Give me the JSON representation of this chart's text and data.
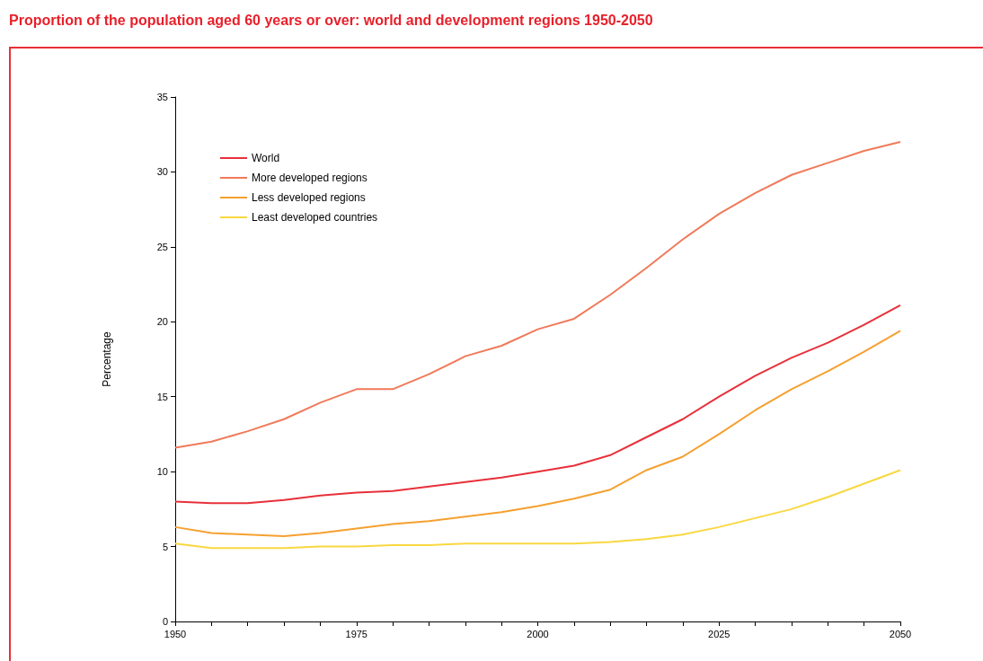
{
  "chart_data": {
    "type": "line",
    "title": "Proportion of the population aged 60 years or over: world and development regions 1950-2050",
    "ylabel": "Percentage",
    "x": [
      1950,
      1955,
      1960,
      1965,
      1970,
      1975,
      1980,
      1985,
      1990,
      1995,
      2000,
      2005,
      2010,
      2015,
      2020,
      2025,
      2030,
      2035,
      2040,
      2045,
      2050
    ],
    "series": [
      {
        "name": "World",
        "color": "#e8303a",
        "values": [
          8.0,
          7.9,
          7.9,
          8.1,
          8.4,
          8.6,
          8.7,
          9.0,
          9.3,
          9.6,
          10.0,
          10.4,
          11.1,
          12.3,
          13.5,
          15.0,
          16.4,
          17.6,
          18.6,
          19.8,
          21.1
        ]
      },
      {
        "name": "More developed regions",
        "color": "#f07a5a",
        "values": [
          11.6,
          12.0,
          12.7,
          13.5,
          14.6,
          15.5,
          15.5,
          16.5,
          17.7,
          18.4,
          19.5,
          20.2,
          21.8,
          23.6,
          25.5,
          27.2,
          28.6,
          29.8,
          30.6,
          31.4,
          32.0
        ]
      },
      {
        "name": "Less developed regions",
        "color": "#f5a030",
        "values": [
          6.3,
          5.9,
          5.8,
          5.7,
          5.9,
          6.2,
          6.5,
          6.7,
          7.0,
          7.3,
          7.7,
          8.2,
          8.8,
          10.1,
          11.0,
          12.5,
          14.1,
          15.5,
          16.7,
          18.0,
          19.4
        ]
      },
      {
        "name": "Least developed countries",
        "color": "#f8d840",
        "values": [
          5.2,
          4.9,
          4.9,
          4.9,
          5.0,
          5.0,
          5.1,
          5.1,
          5.2,
          5.2,
          5.2,
          5.2,
          5.3,
          5.5,
          5.8,
          6.3,
          6.9,
          7.5,
          8.3,
          9.2,
          10.1
        ]
      }
    ],
    "xlim": [
      1950,
      2050
    ],
    "xticks": [
      1950,
      {
        "value": 1955,
        "label": null
      },
      {
        "value": 1960,
        "label": null
      },
      {
        "value": 1965,
        "label": null
      },
      {
        "value": 1970,
        "label": null
      },
      1975,
      {
        "value": 1980,
        "label": null
      },
      {
        "value": 1985,
        "label": null
      },
      {
        "value": 1990,
        "label": null
      },
      {
        "value": 1995,
        "label": null
      },
      2000,
      {
        "value": 2005,
        "label": null
      },
      {
        "value": 2010,
        "label": null
      },
      {
        "value": 2015,
        "label": null
      },
      {
        "value": 2020,
        "label": null
      },
      2025,
      {
        "value": 2030,
        "label": null
      },
      {
        "value": 2035,
        "label": null
      },
      {
        "value": 2040,
        "label": null
      },
      {
        "value": 2045,
        "label": null
      },
      2050
    ],
    "ylim": [
      0,
      35
    ],
    "yticks": [
      0,
      5,
      10,
      15,
      20,
      25,
      30,
      35
    ],
    "grid": false,
    "legend": "top left",
    "marker": "none",
    "line_style": "solid"
  }
}
